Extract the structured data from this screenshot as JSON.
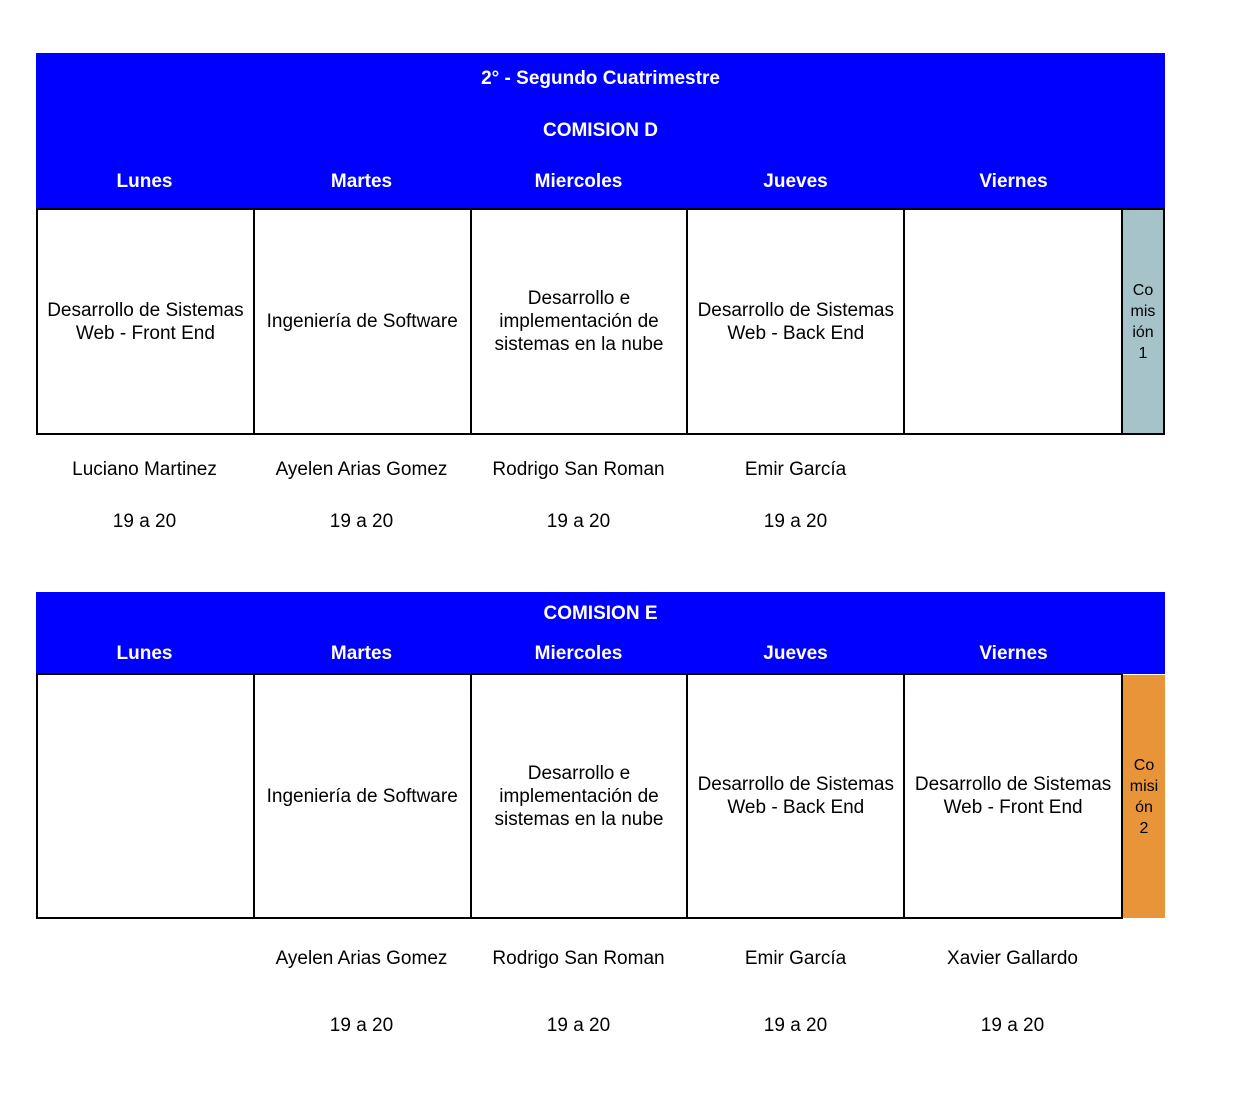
{
  "semester_title": "2° - Segundo Cuatrimestre",
  "days": [
    "Lunes",
    "Martes",
    "Miercoles",
    "Jueves",
    "Viernes"
  ],
  "commission_d": {
    "title": "COMISION D",
    "subjects": [
      "Desarrollo de Sistemas Web - Front End",
      "Ingeniería de Software",
      "Desarrollo e implementación de sistemas en la nube",
      "Desarrollo de Sistemas Web - Back End",
      ""
    ],
    "teachers": [
      "Luciano Martinez",
      "Ayelen Arias Gomez",
      "Rodrigo San Roman",
      "Emir García",
      ""
    ],
    "hours": [
      "19 a 20",
      "19 a 20",
      "19 a 20",
      "19 a 20",
      ""
    ],
    "tag": "Comisión 1",
    "tag_color": "#a6c3c9"
  },
  "commission_e": {
    "title": "COMISION E",
    "subjects": [
      "",
      "Ingeniería de Software",
      "Desarrollo e implementación de sistemas en la nube",
      "Desarrollo de Sistemas Web - Back End",
      "Desarrollo de Sistemas Web - Front End"
    ],
    "teachers": [
      "",
      "Ayelen Arias Gomez",
      "Rodrigo San Roman",
      "Emir García",
      "Xavier Gallardo"
    ],
    "hours": [
      "",
      "19 a 20",
      "19 a 20",
      "19 a 20",
      "19 a 20"
    ],
    "tag": "Comisión 2",
    "tag_color": "#e8953a"
  },
  "colors": {
    "header_bg": "#0000ff",
    "header_text": "#ffffff"
  }
}
